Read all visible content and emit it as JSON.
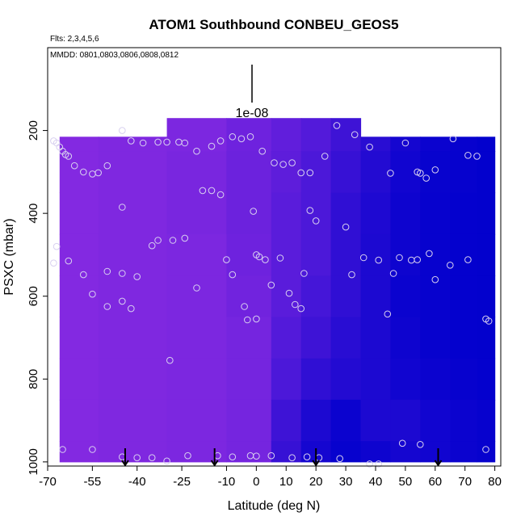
{
  "chart_data": {
    "type": "heatmap",
    "title": "ATOM1 Southbound CONBEU_GEOS5",
    "note_flights": "Flts: 2,3,4,5,6",
    "note_dates": "MMDD: 0801,0803,0806,0808,0812",
    "xlabel": "Latitude (deg N)",
    "ylabel": "PSXC (mbar)",
    "xlim": [
      -70,
      82
    ],
    "ylim": [
      1010,
      0
    ],
    "x_ticks": [
      -70,
      -55,
      -40,
      -25,
      -10,
      0,
      10,
      20,
      30,
      40,
      50,
      60,
      70,
      80
    ],
    "x_tick_labels": [
      "-70",
      "-55",
      "-40",
      "-25",
      "-10",
      "0",
      "10",
      "20",
      "30",
      "40",
      "50",
      "60",
      "70",
      "80"
    ],
    "y_ticks": [
      200,
      400,
      600,
      800,
      1000
    ],
    "y_tick_labels": [
      "200",
      "400",
      "600",
      "800",
      "1000"
    ],
    "scale_bar_label": "1e-08",
    "colors": {
      "low": "#8a2be2",
      "high": "#0000cd",
      "points": "#d8d0f0"
    },
    "field": {
      "x": [
        -66,
        -40,
        -20,
        0,
        10,
        20,
        30,
        40,
        50,
        60,
        70,
        78
      ],
      "y_top": [
        215,
        215,
        170,
        170,
        170,
        170,
        170,
        215,
        215,
        215,
        215,
        215
      ],
      "y_bottom": [
        1000,
        1000,
        1000,
        1000,
        1000,
        1000,
        1000,
        1000,
        1000,
        1000,
        1000,
        1000
      ],
      "levels": [
        200,
        300,
        400,
        500,
        600,
        700,
        800,
        900,
        1000
      ],
      "intensity": [
        [
          0.05,
          0.08,
          0.1,
          0.2,
          0.3,
          0.4,
          0.55,
          0.7,
          0.85,
          0.92,
          0.95,
          0.98
        ],
        [
          0.05,
          0.08,
          0.12,
          0.22,
          0.32,
          0.45,
          0.6,
          0.75,
          0.88,
          0.94,
          0.96,
          0.98
        ],
        [
          0.05,
          0.08,
          0.12,
          0.22,
          0.35,
          0.45,
          0.65,
          0.78,
          0.9,
          0.95,
          0.97,
          0.98
        ],
        [
          0.05,
          0.08,
          0.1,
          0.2,
          0.35,
          0.45,
          0.65,
          0.8,
          0.9,
          0.95,
          0.97,
          0.98
        ],
        [
          0.05,
          0.08,
          0.1,
          0.18,
          0.35,
          0.5,
          0.65,
          0.8,
          0.92,
          0.95,
          0.97,
          0.98
        ],
        [
          0.05,
          0.08,
          0.1,
          0.15,
          0.4,
          0.55,
          0.7,
          0.8,
          0.9,
          0.95,
          0.97,
          0.98
        ],
        [
          0.05,
          0.08,
          0.1,
          0.15,
          0.45,
          0.65,
          0.75,
          0.8,
          0.88,
          0.92,
          0.95,
          0.97
        ],
        [
          0.05,
          0.08,
          0.1,
          0.15,
          0.55,
          0.8,
          0.92,
          0.8,
          0.8,
          0.88,
          0.92,
          0.95
        ],
        [
          0.05,
          0.08,
          0.1,
          0.15,
          0.6,
          0.85,
          0.95,
          0.9,
          0.85,
          0.88,
          0.92,
          0.95
        ]
      ]
    },
    "observation_points": [
      [
        -68,
        225
      ],
      [
        -67,
        230
      ],
      [
        -66,
        240
      ],
      [
        -65,
        250
      ],
      [
        -64,
        258
      ],
      [
        -63,
        262
      ],
      [
        -61,
        285
      ],
      [
        -58,
        300
      ],
      [
        -55,
        305
      ],
      [
        -53,
        302
      ],
      [
        -50,
        285
      ],
      [
        -45,
        200
      ],
      [
        -42,
        225
      ],
      [
        -38,
        230
      ],
      [
        -33,
        228
      ],
      [
        -30,
        228
      ],
      [
        -26,
        228
      ],
      [
        -24,
        230
      ],
      [
        -20,
        250
      ],
      [
        -18,
        345
      ],
      [
        -15,
        238
      ],
      [
        -12,
        225
      ],
      [
        -8,
        215
      ],
      [
        -5,
        220
      ],
      [
        -2,
        215
      ],
      [
        2,
        250
      ],
      [
        6,
        278
      ],
      [
        9,
        282
      ],
      [
        12,
        278
      ],
      [
        15,
        302
      ],
      [
        18,
        302
      ],
      [
        23,
        262
      ],
      [
        27,
        188
      ],
      [
        33,
        210
      ],
      [
        38,
        240
      ],
      [
        45,
        303
      ],
      [
        50,
        230
      ],
      [
        54,
        300
      ],
      [
        55,
        303
      ],
      [
        57,
        315
      ],
      [
        60,
        295
      ],
      [
        66,
        220
      ],
      [
        71,
        260
      ],
      [
        74,
        262
      ],
      [
        -45,
        385
      ],
      [
        -55,
        595
      ],
      [
        -50,
        625
      ],
      [
        -45,
        612
      ],
      [
        -42,
        630
      ],
      [
        -58,
        548
      ],
      [
        -63,
        515
      ],
      [
        -67,
        480
      ],
      [
        -68,
        520
      ],
      [
        -50,
        540
      ],
      [
        -45,
        545
      ],
      [
        -40,
        553
      ],
      [
        -35,
        478
      ],
      [
        -33,
        465
      ],
      [
        -28,
        465
      ],
      [
        -24,
        460
      ],
      [
        -20,
        580
      ],
      [
        -15,
        345
      ],
      [
        -12,
        355
      ],
      [
        -10,
        512
      ],
      [
        -8,
        548
      ],
      [
        -4,
        625
      ],
      [
        -3,
        657
      ],
      [
        0,
        655
      ],
      [
        -1,
        395
      ],
      [
        0,
        500
      ],
      [
        1,
        505
      ],
      [
        3,
        512
      ],
      [
        5,
        573
      ],
      [
        8,
        508
      ],
      [
        11,
        593
      ],
      [
        13,
        620
      ],
      [
        15,
        630
      ],
      [
        16,
        545
      ],
      [
        18,
        393
      ],
      [
        20,
        418
      ],
      [
        30,
        433
      ],
      [
        32,
        548
      ],
      [
        36,
        507
      ],
      [
        41,
        513
      ],
      [
        44,
        643
      ],
      [
        46,
        545
      ],
      [
        48,
        507
      ],
      [
        52,
        513
      ],
      [
        54,
        512
      ],
      [
        58,
        497
      ],
      [
        60,
        560
      ],
      [
        65,
        525
      ],
      [
        71,
        512
      ],
      [
        77,
        655
      ],
      [
        78,
        660
      ],
      [
        -65,
        970
      ],
      [
        -55,
        970
      ],
      [
        -45,
        988
      ],
      [
        -40,
        990
      ],
      [
        -35,
        990
      ],
      [
        -30,
        998
      ],
      [
        -23,
        985
      ],
      [
        -13,
        985
      ],
      [
        -8,
        988
      ],
      [
        -2,
        985
      ],
      [
        0,
        986
      ],
      [
        5,
        985
      ],
      [
        12,
        990
      ],
      [
        17,
        988
      ],
      [
        21,
        990
      ],
      [
        28,
        992
      ],
      [
        38,
        1005
      ],
      [
        41,
        1005
      ],
      [
        49,
        955
      ],
      [
        55,
        958
      ],
      [
        77,
        970
      ],
      [
        -29,
        755
      ]
    ],
    "arrows": [
      -44,
      -14,
      20,
      61
    ]
  }
}
